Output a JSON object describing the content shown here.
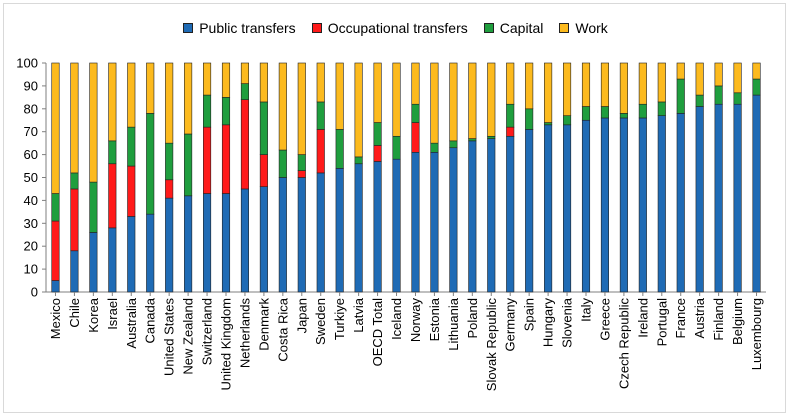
{
  "chart_data": {
    "type": "bar",
    "stacked": true,
    "categories": [
      "Mexico",
      "Chile",
      "Korea",
      "Israel",
      "Australia",
      "Canada",
      "United States",
      "New Zealand",
      "Switzerland",
      "United Kingdom",
      "Netherlands",
      "Denmark",
      "Costa Rica",
      "Japan",
      "Sweden",
      "Turkiye",
      "Latvia",
      "OECD Total",
      "Iceland",
      "Norway",
      "Estonia",
      "Lithuania",
      "Poland",
      "Slovak Republic",
      "Germany",
      "Spain",
      "Hungary",
      "Slovenia",
      "Italy",
      "Greece",
      "Czech Republic",
      "Ireland",
      "Portugal",
      "France",
      "Austria",
      "Finland",
      "Belgium",
      "Luxembourg"
    ],
    "series": [
      {
        "name": "Public transfers",
        "color": "#1f6bb5",
        "values": [
          5,
          18,
          26,
          28,
          33,
          34,
          41,
          42,
          43,
          43,
          45,
          46,
          50,
          50,
          52,
          54,
          56,
          57,
          58,
          61,
          61,
          63,
          66,
          67,
          68,
          71,
          73,
          73,
          75,
          76,
          76,
          76,
          77,
          78,
          81,
          82,
          82,
          86
        ]
      },
      {
        "name": "Occupational transfers",
        "color": "#ff1a1a",
        "values": [
          26,
          27,
          0,
          28,
          22,
          0,
          8,
          0,
          29,
          30,
          39,
          14,
          0,
          3,
          19,
          0,
          0,
          7,
          0,
          13,
          0,
          0,
          0,
          0,
          4,
          0,
          0,
          0,
          0,
          0,
          0,
          0,
          0,
          0,
          0,
          0,
          0,
          0
        ]
      },
      {
        "name": "Capital",
        "color": "#1f9e3e",
        "values": [
          12,
          7,
          22,
          10,
          17,
          44,
          16,
          27,
          14,
          12,
          7,
          23,
          12,
          7,
          12,
          17,
          3,
          10,
          10,
          8,
          4,
          3,
          1,
          1,
          10,
          9,
          1,
          4,
          6,
          5,
          2,
          6,
          6,
          15,
          5,
          8,
          5,
          7
        ]
      },
      {
        "name": "Work",
        "color": "#fcba1e",
        "values": [
          57,
          48,
          52,
          34,
          28,
          22,
          35,
          31,
          14,
          15,
          9,
          17,
          38,
          40,
          17,
          29,
          41,
          26,
          32,
          18,
          35,
          34,
          33,
          32,
          18,
          20,
          26,
          23,
          19,
          19,
          22,
          18,
          17,
          7,
          14,
          10,
          13,
          7
        ]
      }
    ],
    "ylim": [
      0,
      100
    ],
    "yticks": [
      0,
      10,
      20,
      30,
      40,
      50,
      60,
      70,
      80,
      90,
      100
    ],
    "legend_position": "top",
    "grid": false
  }
}
